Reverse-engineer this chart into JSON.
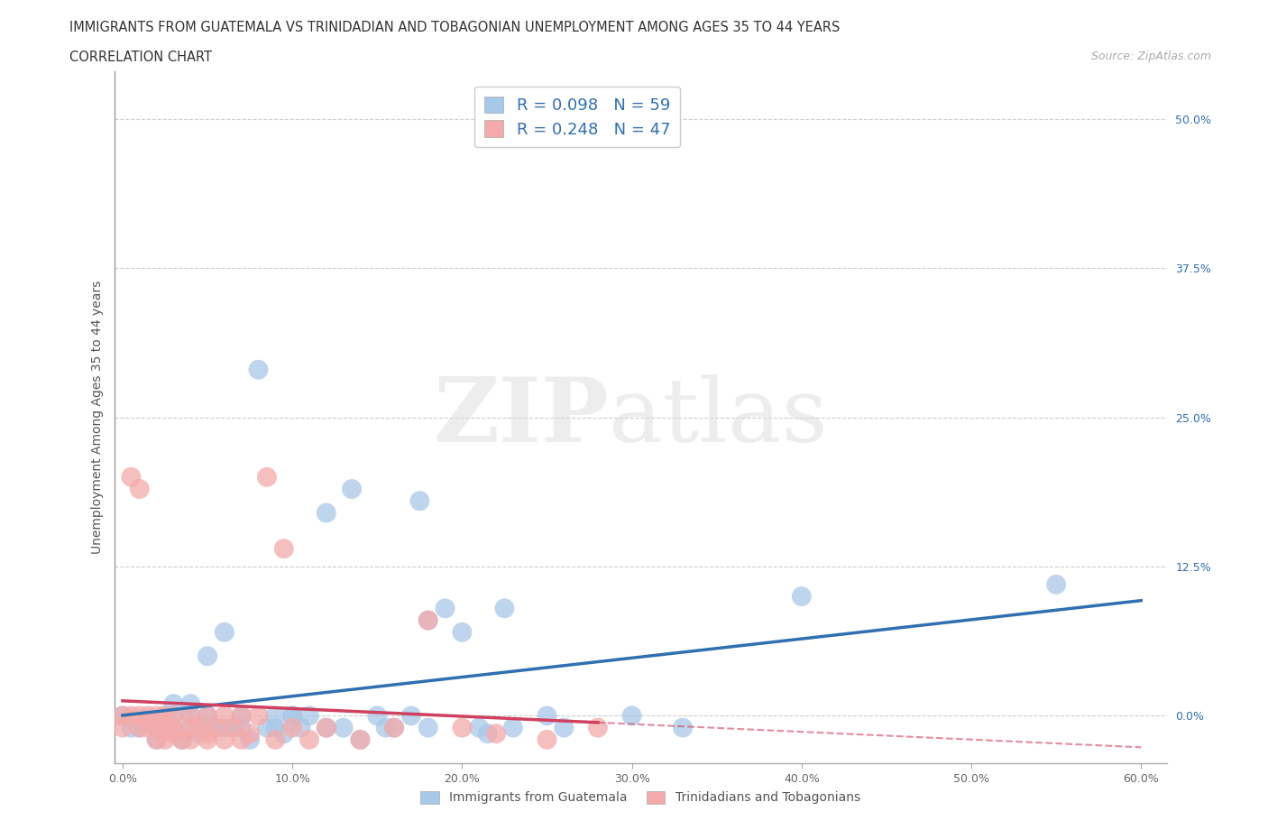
{
  "title_line1": "IMMIGRANTS FROM GUATEMALA VS TRINIDADIAN AND TOBAGONIAN UNEMPLOYMENT AMONG AGES 35 TO 44 YEARS",
  "title_line2": "CORRELATION CHART",
  "source_text": "Source: ZipAtlas.com",
  "ylabel": "Unemployment Among Ages 35 to 44 years",
  "xlabel_ticks": [
    "0.0%",
    "10.0%",
    "20.0%",
    "30.0%",
    "40.0%",
    "50.0%",
    "60.0%"
  ],
  "xlabel_vals": [
    0.0,
    0.1,
    0.2,
    0.3,
    0.4,
    0.5,
    0.6
  ],
  "ylabel_ticks": [
    "0.0%",
    "12.5%",
    "25.0%",
    "37.5%",
    "50.0%"
  ],
  "ylabel_vals": [
    0.0,
    0.125,
    0.25,
    0.375,
    0.5
  ],
  "xlim": [
    -0.005,
    0.615
  ],
  "ylim": [
    -0.04,
    0.54
  ],
  "blue_R": 0.098,
  "blue_N": 59,
  "pink_R": 0.248,
  "pink_N": 47,
  "blue_color": "#a8c8e8",
  "pink_color": "#f4aaaa",
  "blue_line_color": "#3070b0",
  "pink_line_color": "#d04060",
  "legend_blue_label": "Immigrants from Guatemala",
  "legend_pink_label": "Trinidadians and Tobagonians",
  "watermark_zip": "ZIP",
  "watermark_atlas": "atlas",
  "grid_color": "#cccccc",
  "blue_x": [
    0.0,
    0.005,
    0.01,
    0.015,
    0.02,
    0.02,
    0.025,
    0.025,
    0.03,
    0.03,
    0.03,
    0.035,
    0.04,
    0.04,
    0.04,
    0.045,
    0.05,
    0.05,
    0.05,
    0.055,
    0.06,
    0.06,
    0.065,
    0.07,
    0.07,
    0.075,
    0.08,
    0.085,
    0.09,
    0.09,
    0.095,
    0.1,
    0.1,
    0.105,
    0.11,
    0.12,
    0.12,
    0.13,
    0.135,
    0.14,
    0.15,
    0.155,
    0.16,
    0.17,
    0.175,
    0.18,
    0.18,
    0.19,
    0.2,
    0.21,
    0.215,
    0.225,
    0.23,
    0.25,
    0.26,
    0.3,
    0.33,
    0.4,
    0.55
  ],
  "blue_y": [
    0.0,
    -0.01,
    -0.01,
    -0.005,
    -0.01,
    -0.02,
    -0.01,
    0.0,
    -0.01,
    0.0,
    0.01,
    -0.02,
    -0.01,
    0.0,
    0.01,
    -0.015,
    -0.01,
    0.0,
    0.05,
    -0.01,
    -0.01,
    0.07,
    -0.01,
    -0.01,
    0.0,
    -0.02,
    0.29,
    -0.01,
    -0.01,
    0.0,
    -0.015,
    0.0,
    0.0,
    -0.01,
    0.0,
    -0.01,
    0.17,
    -0.01,
    0.19,
    -0.02,
    0.0,
    -0.01,
    -0.01,
    0.0,
    0.18,
    0.08,
    -0.01,
    0.09,
    0.07,
    -0.01,
    -0.015,
    0.09,
    -0.01,
    0.0,
    -0.01,
    0.0,
    -0.01,
    0.1,
    0.11
  ],
  "pink_x": [
    0.0,
    0.0,
    0.005,
    0.005,
    0.01,
    0.01,
    0.01,
    0.015,
    0.015,
    0.02,
    0.02,
    0.02,
    0.025,
    0.025,
    0.025,
    0.03,
    0.03,
    0.03,
    0.035,
    0.04,
    0.04,
    0.04,
    0.045,
    0.05,
    0.05,
    0.05,
    0.055,
    0.06,
    0.06,
    0.065,
    0.07,
    0.07,
    0.075,
    0.08,
    0.085,
    0.09,
    0.095,
    0.1,
    0.11,
    0.12,
    0.14,
    0.16,
    0.18,
    0.2,
    0.22,
    0.25,
    0.28
  ],
  "pink_y": [
    0.0,
    -0.01,
    0.0,
    0.2,
    -0.01,
    0.0,
    0.19,
    -0.01,
    0.0,
    -0.01,
    -0.02,
    0.0,
    -0.01,
    0.0,
    -0.02,
    -0.01,
    0.0,
    -0.015,
    -0.02,
    -0.01,
    0.0,
    -0.02,
    -0.01,
    -0.015,
    0.0,
    -0.02,
    -0.01,
    0.0,
    -0.02,
    -0.01,
    -0.02,
    0.0,
    -0.015,
    0.0,
    0.2,
    -0.02,
    0.14,
    -0.01,
    -0.02,
    -0.01,
    -0.02,
    -0.01,
    0.08,
    -0.01,
    -0.015,
    -0.02,
    -0.01
  ]
}
